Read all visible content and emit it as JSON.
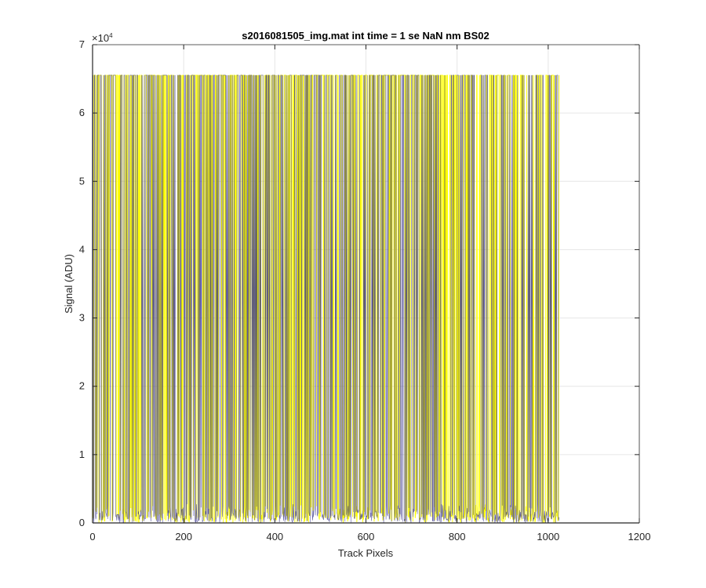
{
  "chart_data": {
    "type": "line",
    "title": "s2016081505_img.mat int time = 1 se  NaN nm BS02",
    "xlabel": "Track Pixels",
    "ylabel": "Signal (ADU)",
    "y_exponent_label": "×10",
    "y_exponent_power": "4",
    "xlim": [
      0,
      1200
    ],
    "ylim": [
      0,
      70000
    ],
    "x_ticks": [
      0,
      200,
      400,
      600,
      800,
      1000,
      1200
    ],
    "x_tick_labels": [
      "0",
      "200",
      "400",
      "600",
      "800",
      "1000",
      "1200"
    ],
    "y_ticks": [
      0,
      10000,
      20000,
      30000,
      40000,
      50000,
      60000,
      70000
    ],
    "y_tick_labels": [
      "0",
      "1",
      "2",
      "3",
      "4",
      "5",
      "6",
      "7"
    ],
    "grid": true,
    "colors": {
      "series_a": "#ffff00",
      "series_b": "#2e2a86",
      "axes": "#262626",
      "grid": "#e6e6e6"
    },
    "series": [
      {
        "color": "#ffff00",
        "x_range": [
          1,
          1024
        ],
        "saturation_value": 65535,
        "low_values_approx": [
          0,
          3000
        ]
      },
      {
        "color": "#2e2a86",
        "x_range": [
          1,
          1024
        ],
        "saturation_value": 65535,
        "low_values_approx": [
          0,
          3000
        ]
      }
    ]
  }
}
